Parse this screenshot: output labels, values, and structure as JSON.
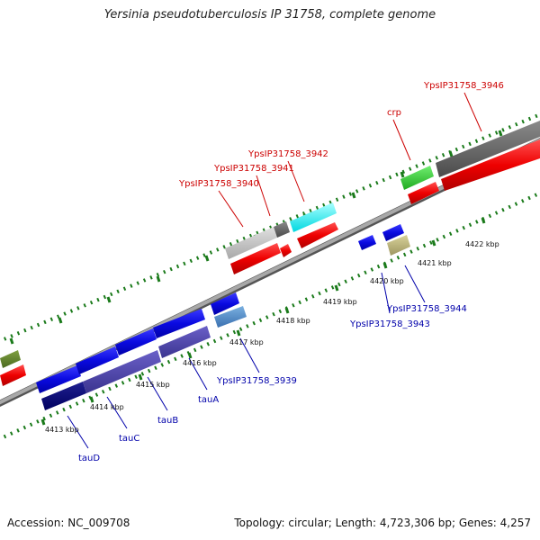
{
  "title": "Yersinia pseudotuberculosis IP 31758, complete genome",
  "footer": {
    "accession": "Accession: NC_009708",
    "summary": "Topology: circular; Length: 4,723,306 bp; Genes: 4,257"
  },
  "colors": {
    "forward_label": "#cc0000",
    "reverse_label": "#0000aa",
    "tick": "#1a7a1a",
    "backbone": "#808080"
  },
  "kbp_labels": [
    "4413 kbp",
    "4414 kbp",
    "4415 kbp",
    "4416 kbp",
    "4417 kbp",
    "4418 kbp",
    "4419 kbp",
    "4420 kbp",
    "4421 kbp",
    "4422 kbp"
  ],
  "forward_labels": [
    "YpsIP31758_3946",
    "crp",
    "YpsIP31758_3942",
    "YpsIP31758_3941",
    "YpsIP31758_3940"
  ],
  "reverse_labels": [
    "YpsIP31758_3944",
    "YpsIP31758_3943",
    "YpsIP31758_3939",
    "tauA",
    "tauB",
    "tauC",
    "tauD"
  ]
}
